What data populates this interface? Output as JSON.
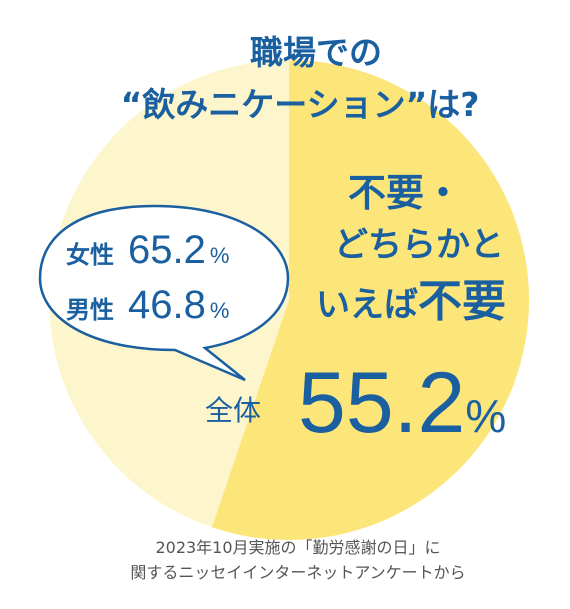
{
  "title": {
    "line1": "職場での",
    "line2": "“飲みニケーション”は?"
  },
  "main_label": {
    "line1": "不要・",
    "line2": "どちらかと",
    "line3_prefix": "いえば",
    "line3_emph": "不要"
  },
  "total": {
    "label": "全体",
    "value": "55.2",
    "unit": "%"
  },
  "bubble": {
    "women_label": "女性",
    "women_value": "65.2",
    "men_label": "男性",
    "men_value": "46.8",
    "unit": "%"
  },
  "source": {
    "line1": "2023年10月実施の「勤労感謝の日」に",
    "line2": "関するニッセイインターネットアンケートから"
  },
  "colors": {
    "highlight": "#fce67a",
    "rest": "#fdf6cc",
    "text": "#1a5fa0"
  },
  "chart_data": {
    "type": "pie",
    "title": "職場での“飲みニケーション”は?",
    "labels": [
      "不要・どちらかといえば不要",
      ""
    ],
    "values": [
      55.2,
      44.8
    ],
    "unit": "%",
    "annotations": [
      {
        "label": "女性",
        "value": 65.2
      },
      {
        "label": "男性",
        "value": 46.8
      }
    ]
  }
}
